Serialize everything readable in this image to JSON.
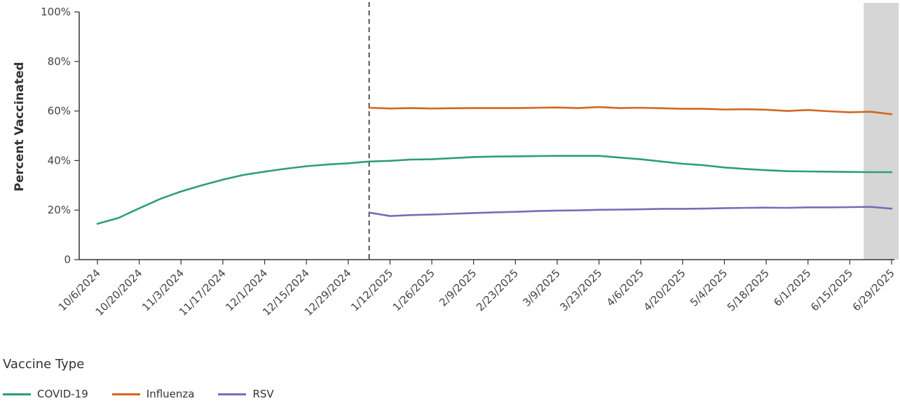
{
  "chart_data": {
    "type": "line",
    "ylabel": "Percent Vaccinated",
    "ylim": [
      0,
      100
    ],
    "y_ticks": [
      "0",
      "20%",
      "40%",
      "60%",
      "80%",
      "100%"
    ],
    "y_tick_values": [
      0,
      20,
      40,
      60,
      80,
      100
    ],
    "x_ticks": [
      "10/6/2024",
      "10/20/2024",
      "11/3/2024",
      "11/17/2024",
      "12/1/2024",
      "12/15/2024",
      "12/29/2024",
      "1/12/2025",
      "1/26/2025",
      "2/9/2025",
      "2/23/2025",
      "3/9/2025",
      "3/23/2025",
      "4/6/2025",
      "4/20/2025",
      "5/4/2025",
      "5/18/2025",
      "6/1/2025",
      "6/15/2025",
      "6/29/2025"
    ],
    "x_range": [
      "10/6/2024",
      "6/29/2025"
    ],
    "dashed_line_x": "1/5/2025",
    "shaded_region": [
      "6/22/2025",
      "6/29/2025"
    ],
    "grid": false,
    "legend_title": "Vaccine Type",
    "legend_position": "bottom-left",
    "series": [
      {
        "name": "COVID-19",
        "color": "#2e9e78",
        "x": [
          "10/6/2024",
          "10/13/2024",
          "10/20/2024",
          "10/27/2024",
          "11/3/2024",
          "11/10/2024",
          "11/17/2024",
          "11/24/2024",
          "12/1/2024",
          "12/8/2024",
          "12/15/2024",
          "12/22/2024",
          "12/29/2024",
          "1/5/2025",
          "1/12/2025",
          "1/19/2025",
          "1/26/2025",
          "2/2/2025",
          "2/9/2025",
          "2/16/2025",
          "2/23/2025",
          "3/2/2025",
          "3/9/2025",
          "3/16/2025",
          "3/23/2025",
          "3/30/2025",
          "4/6/2025",
          "4/13/2025",
          "4/20/2025",
          "4/27/2025",
          "5/4/2025",
          "5/11/2025",
          "5/18/2025",
          "5/25/2025",
          "6/1/2025",
          "6/8/2025",
          "6/15/2025",
          "6/22/2025",
          "6/29/2025"
        ],
        "values": [
          14.5,
          16.8,
          20.7,
          24.5,
          27.5,
          30.0,
          32.3,
          34.2,
          35.5,
          36.7,
          37.7,
          38.4,
          38.9,
          39.6,
          39.9,
          40.4,
          40.5,
          41.0,
          41.4,
          41.6,
          41.7,
          41.8,
          41.9,
          41.9,
          41.9,
          41.2,
          40.5,
          39.6,
          38.7,
          38.1,
          37.2,
          36.6,
          36.1,
          35.7,
          35.6,
          35.5,
          35.4,
          35.3,
          35.3
        ]
      },
      {
        "name": "Influenza",
        "color": "#d4661f",
        "x": [
          "1/5/2025",
          "1/12/2025",
          "1/19/2025",
          "1/26/2025",
          "2/2/2025",
          "2/9/2025",
          "2/16/2025",
          "2/23/2025",
          "3/2/2025",
          "3/9/2025",
          "3/16/2025",
          "3/23/2025",
          "3/30/2025",
          "4/6/2025",
          "4/13/2025",
          "4/20/2025",
          "4/27/2025",
          "5/4/2025",
          "5/11/2025",
          "5/18/2025",
          "5/25/2025",
          "6/1/2025",
          "6/8/2025",
          "6/15/2025",
          "6/22/2025",
          "6/29/2025"
        ],
        "values": [
          61.3,
          61.0,
          61.2,
          61.0,
          61.1,
          61.2,
          61.2,
          61.2,
          61.3,
          61.4,
          61.2,
          61.6,
          61.2,
          61.3,
          61.1,
          60.9,
          60.9,
          60.6,
          60.7,
          60.5,
          60.0,
          60.4,
          59.9,
          59.5,
          59.7,
          58.7
        ]
      },
      {
        "name": "RSV",
        "color": "#7b6bb8",
        "x": [
          "1/5/2025",
          "1/12/2025",
          "1/19/2025",
          "1/26/2025",
          "2/2/2025",
          "2/9/2025",
          "2/16/2025",
          "2/23/2025",
          "3/2/2025",
          "3/9/2025",
          "3/16/2025",
          "3/23/2025",
          "3/30/2025",
          "4/6/2025",
          "4/13/2025",
          "4/20/2025",
          "4/27/2025",
          "5/4/2025",
          "5/11/2025",
          "5/18/2025",
          "5/25/2025",
          "6/1/2025",
          "6/8/2025",
          "6/15/2025",
          "6/22/2025",
          "6/29/2025"
        ],
        "values": [
          19.0,
          17.6,
          18.0,
          18.2,
          18.5,
          18.8,
          19.1,
          19.3,
          19.6,
          19.8,
          19.9,
          20.1,
          20.2,
          20.3,
          20.5,
          20.5,
          20.6,
          20.8,
          20.9,
          21.0,
          20.9,
          21.1,
          21.1,
          21.2,
          21.3,
          20.6
        ]
      }
    ]
  }
}
